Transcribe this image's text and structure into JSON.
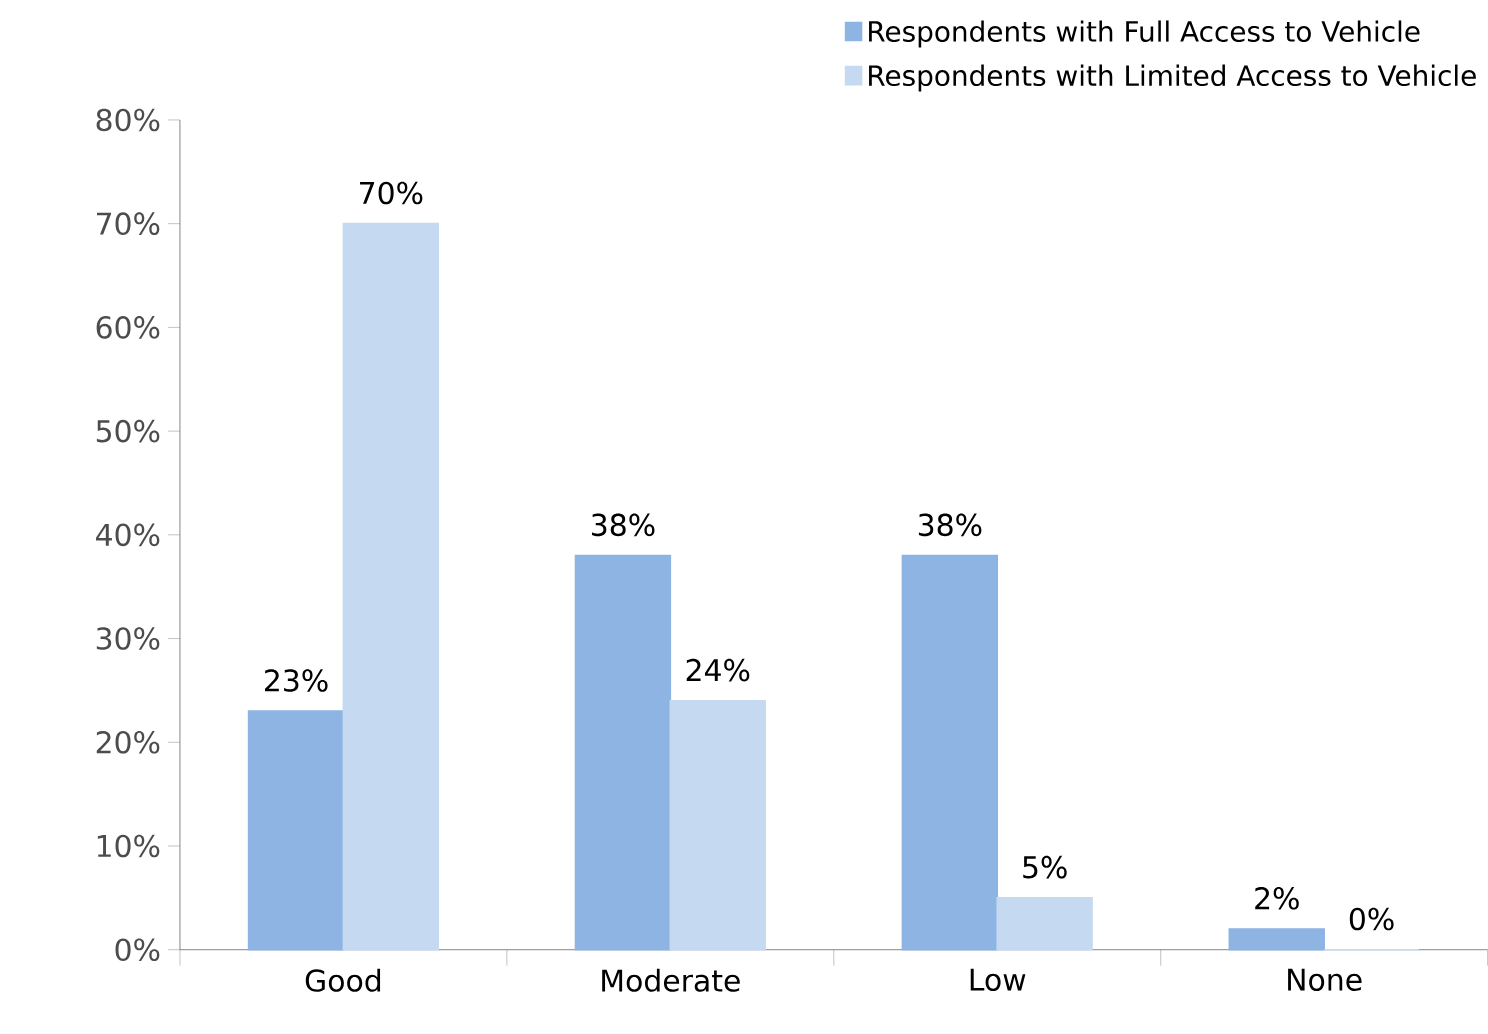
{
  "chart_data": {
    "type": "bar",
    "categories": [
      "Good",
      "Moderate",
      "Low",
      "None"
    ],
    "series": [
      {
        "name": "Respondents with Full Access to Vehicle",
        "color": "#8db4e2",
        "values": [
          23,
          38,
          38,
          2
        ],
        "value_labels": [
          "23%",
          "38%",
          "38%",
          "2%"
        ]
      },
      {
        "name": "Respondents with Limited Access to Vehicle",
        "color": "#c5d9f1",
        "values": [
          70,
          24,
          5,
          0
        ],
        "value_labels": [
          "70%",
          "24%",
          "5%",
          "0%"
        ]
      }
    ],
    "ylim": [
      0,
      80
    ],
    "yticks": [
      {
        "value": 0,
        "label": "0%"
      },
      {
        "value": 10,
        "label": "10%"
      },
      {
        "value": 20,
        "label": "20%"
      },
      {
        "value": 30,
        "label": "30%"
      },
      {
        "value": 40,
        "label": "40%"
      },
      {
        "value": 50,
        "label": "50%"
      },
      {
        "value": 60,
        "label": "60%"
      },
      {
        "value": 70,
        "label": "70%"
      },
      {
        "value": 80,
        "label": "80%"
      }
    ],
    "grid": false,
    "legend": "top right"
  }
}
